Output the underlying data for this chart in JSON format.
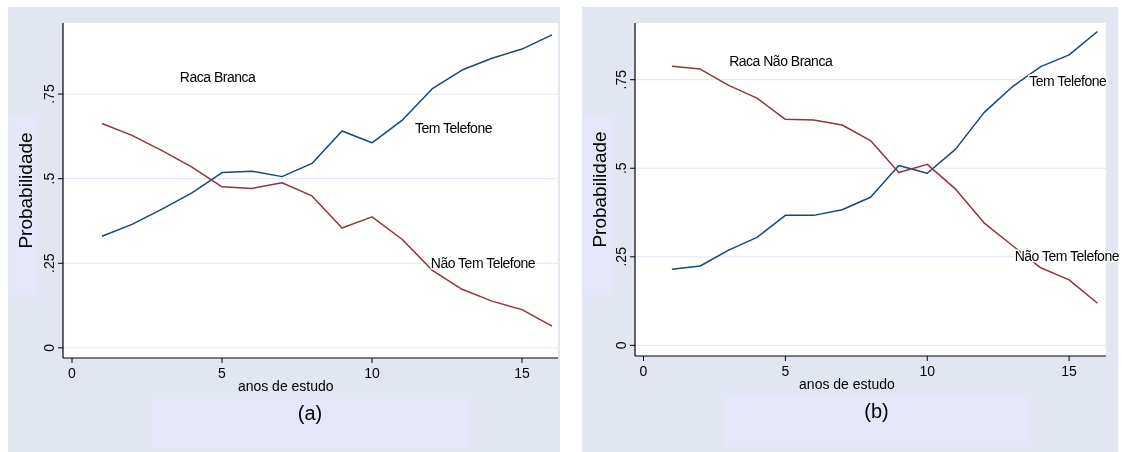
{
  "chart_data": [
    {
      "type": "line",
      "title": "(a)",
      "xlabel": "anos de estudo",
      "ylabel": "Probabilidade",
      "x": [
        1,
        2,
        3,
        4,
        5,
        6,
        7,
        8,
        9,
        10,
        11,
        12,
        13,
        14,
        15,
        16
      ],
      "xlim": [
        -0.3,
        16.2
      ],
      "xticks": [
        0,
        5,
        10,
        15
      ],
      "ylim": [
        -0.03,
        0.96
      ],
      "yticks": [
        0,
        {
          "value": 0.25,
          "label": ".25"
        },
        {
          "value": 0.5,
          "label": ".5"
        },
        {
          "value": 0.75,
          "label": ".75"
        }
      ],
      "grid": "y",
      "series": [
        {
          "color": "#1a476f",
          "values": [
            0.33,
            0.365,
            0.41,
            0.458,
            0.518,
            0.522,
            0.506,
            0.545,
            0.641,
            0.606,
            0.672,
            0.765,
            0.821,
            0.856,
            0.883,
            0.925
          ]
        },
        {
          "color": "#90353b",
          "values": [
            0.663,
            0.628,
            0.583,
            0.534,
            0.476,
            0.471,
            0.488,
            0.449,
            0.354,
            0.387,
            0.321,
            0.23,
            0.173,
            0.138,
            0.113,
            0.064
          ]
        }
      ],
      "annotations": [
        "Raca Branca",
        "Tem Telefone",
        "Não Tem Telefone"
      ]
    },
    {
      "type": "line",
      "title": "(b)",
      "xlabel": "anos de estudo",
      "ylabel": "Probabilidade",
      "x": [
        1,
        2,
        3,
        4,
        5,
        6,
        7,
        8,
        9,
        10,
        11,
        12,
        13,
        14,
        15,
        16
      ],
      "xlim": [
        -0.3,
        16.3
      ],
      "xticks": [
        0,
        5,
        10,
        15
      ],
      "ylim": [
        -0.03,
        0.91
      ],
      "yticks": [
        0,
        {
          "value": 0.25,
          "label": ".25"
        },
        {
          "value": 0.5,
          "label": ".5"
        },
        {
          "value": 0.75,
          "label": ".75"
        }
      ],
      "grid": "y",
      "series": [
        {
          "color": "#1a476f",
          "values": [
            0.215,
            0.224,
            0.269,
            0.305,
            0.367,
            0.367,
            0.383,
            0.418,
            0.508,
            0.486,
            0.554,
            0.657,
            0.73,
            0.787,
            0.82,
            0.886
          ]
        },
        {
          "color": "#90353b",
          "values": [
            0.788,
            0.78,
            0.734,
            0.698,
            0.638,
            0.636,
            0.622,
            0.578,
            0.488,
            0.511,
            0.441,
            0.346,
            0.282,
            0.219,
            0.185,
            0.119
          ]
        }
      ],
      "annotations": [
        "Raca Não Branca",
        "Tem Telefone",
        "Não Tem Telefone"
      ]
    }
  ]
}
